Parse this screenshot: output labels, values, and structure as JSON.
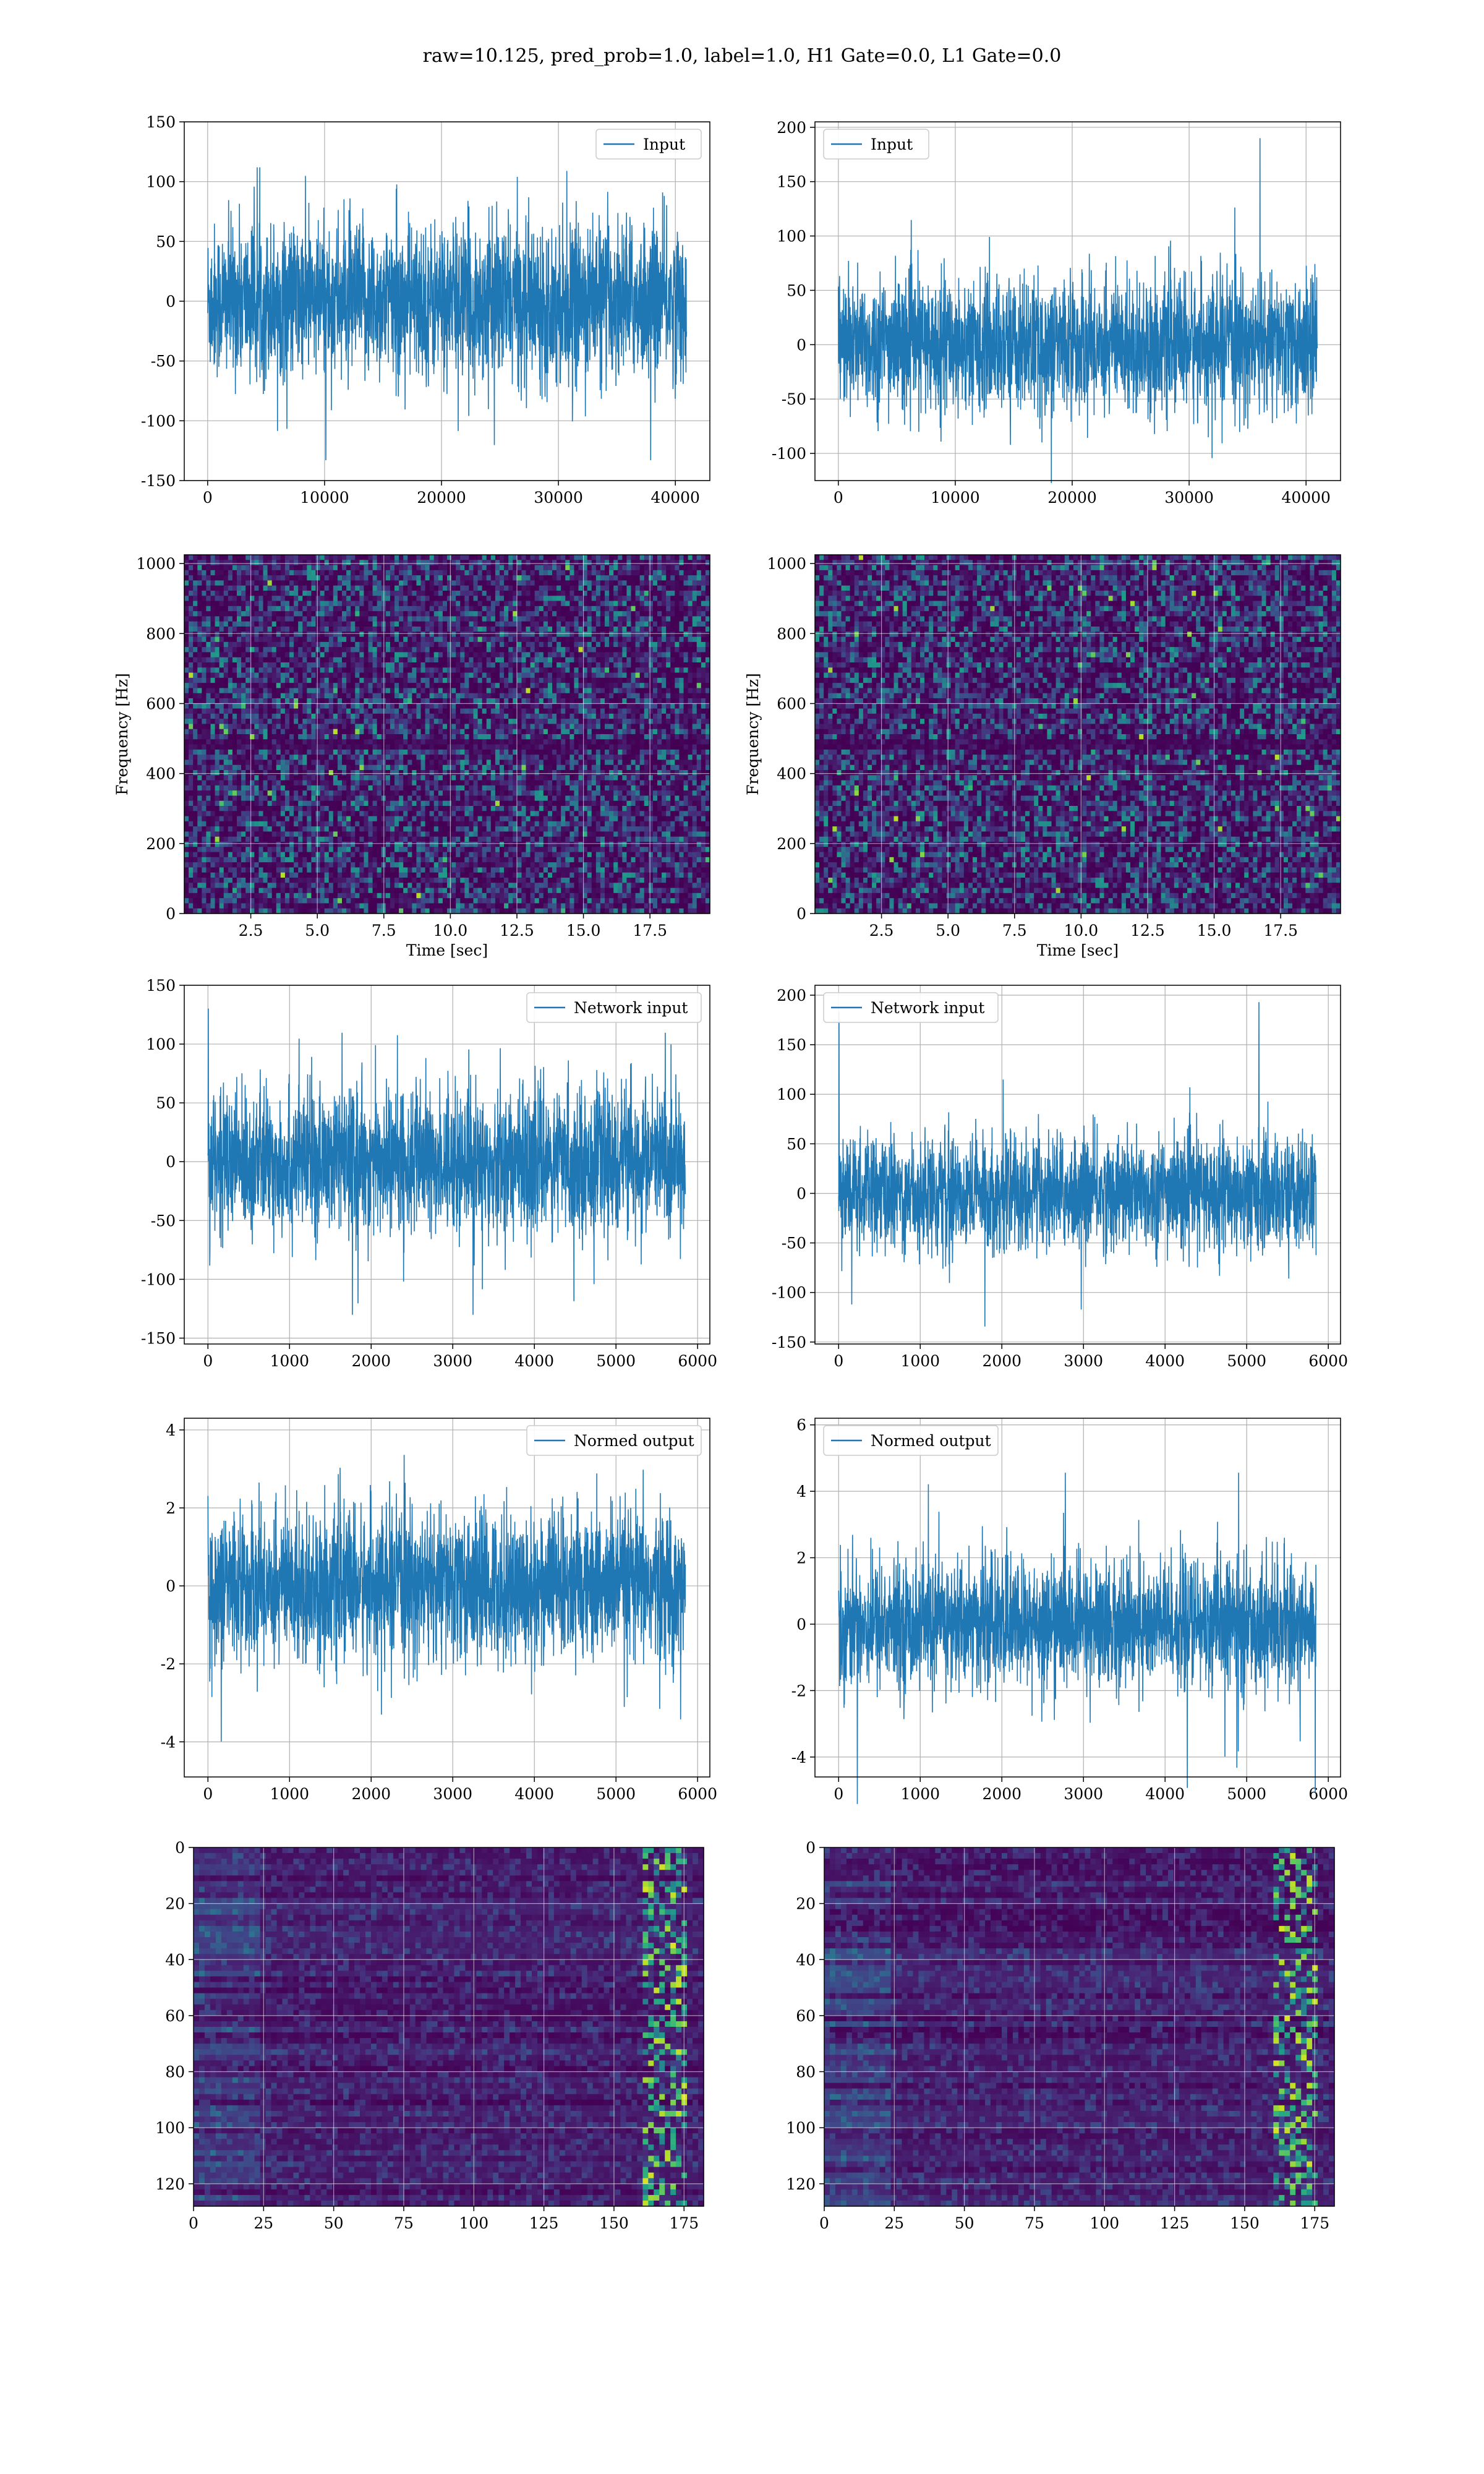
{
  "figure": {
    "title": "raw=10.125, pred_prob=1.0, label=1.0, H1 Gate=0.0, L1 Gate=0.0",
    "line_color": "#1f77b4",
    "colormap": "viridis"
  },
  "chart_data": [
    {
      "id": "h1-input",
      "type": "line",
      "series": [
        {
          "name": "Input"
        }
      ],
      "x_range": [
        0,
        40960
      ],
      "ylim": [
        -150,
        150
      ],
      "y_spread": 32,
      "y_extreme": 140,
      "xticks": [
        0,
        10000,
        20000,
        30000,
        40000
      ],
      "yticks": [
        -150,
        -100,
        -50,
        0,
        50,
        100,
        150
      ],
      "xlabel": "",
      "ylabel": "",
      "legend": "top-right",
      "grid": true
    },
    {
      "id": "l1-input",
      "type": "line",
      "series": [
        {
          "name": "Input"
        }
      ],
      "x_range": [
        0,
        40960
      ],
      "ylim": [
        -125,
        205
      ],
      "y_spread": 30,
      "y_extreme": 190,
      "xticks": [
        0,
        10000,
        20000,
        30000,
        40000
      ],
      "yticks": [
        -100,
        -50,
        0,
        50,
        100,
        150,
        200
      ],
      "xlabel": "",
      "ylabel": "",
      "legend": "top-left",
      "grid": true
    },
    {
      "id": "h1-spectrogram",
      "type": "heatmap",
      "xlim": [
        0,
        19.75
      ],
      "ylim": [
        0,
        1025
      ],
      "xticks": [
        "2.5",
        "5.0",
        "7.5",
        "10.0",
        "12.5",
        "15.0",
        "17.5"
      ],
      "yticks": [
        0,
        200,
        400,
        600,
        800,
        1000
      ],
      "xlabel": "Time [sec]",
      "ylabel": "Frequency [Hz]",
      "grid": true
    },
    {
      "id": "l1-spectrogram",
      "type": "heatmap",
      "xlim": [
        0,
        19.75
      ],
      "ylim": [
        0,
        1025
      ],
      "xticks": [
        "2.5",
        "5.0",
        "7.5",
        "10.0",
        "12.5",
        "15.0",
        "17.5"
      ],
      "yticks": [
        0,
        200,
        400,
        600,
        800,
        1000
      ],
      "xlabel": "Time [sec]",
      "ylabel": "Frequency [Hz]",
      "grid": true
    },
    {
      "id": "h1-network-input",
      "type": "line",
      "series": [
        {
          "name": "Network input"
        }
      ],
      "x_range": [
        0,
        5850
      ],
      "ylim": [
        -155,
        150
      ],
      "y_spread": 30,
      "y_extreme": 137,
      "xticks": [
        0,
        1000,
        2000,
        3000,
        4000,
        5000,
        6000
      ],
      "yticks": [
        -150,
        -100,
        -50,
        0,
        50,
        100,
        150
      ],
      "xlabel": "",
      "ylabel": "",
      "legend": "top-right",
      "grid": true
    },
    {
      "id": "l1-network-input",
      "type": "line",
      "series": [
        {
          "name": "Network input"
        }
      ],
      "x_range": [
        0,
        5850
      ],
      "ylim": [
        -152,
        210
      ],
      "y_spread": 28,
      "y_extreme": 193,
      "xticks": [
        0,
        1000,
        2000,
        3000,
        4000,
        5000,
        6000
      ],
      "yticks": [
        -150,
        -100,
        -50,
        0,
        50,
        100,
        150,
        200
      ],
      "xlabel": "",
      "ylabel": "",
      "legend": "top-left",
      "grid": true
    },
    {
      "id": "h1-normed-output",
      "type": "line",
      "series": [
        {
          "name": "Normed output"
        }
      ],
      "x_range": [
        0,
        5850
      ],
      "ylim": [
        -4.9,
        4.3
      ],
      "y_spread": 0.95,
      "y_extreme": 4.2,
      "xticks": [
        0,
        1000,
        2000,
        3000,
        4000,
        5000,
        6000
      ],
      "yticks": [
        -4,
        -2,
        0,
        2,
        4
      ],
      "xlabel": "",
      "ylabel": "",
      "legend": "top-right",
      "grid": true
    },
    {
      "id": "l1-normed-output",
      "type": "line",
      "series": [
        {
          "name": "Normed output"
        }
      ],
      "x_range": [
        0,
        5850
      ],
      "ylim": [
        -4.6,
        6.2
      ],
      "y_spread": 0.95,
      "y_extreme": 5.7,
      "xticks": [
        0,
        1000,
        2000,
        3000,
        4000,
        5000,
        6000
      ],
      "yticks": [
        -4,
        -2,
        0,
        2,
        4,
        6
      ],
      "xlabel": "",
      "ylabel": "",
      "legend": "top-left",
      "grid": true
    },
    {
      "id": "h1-feature-map",
      "type": "heatmap",
      "xlim": [
        0,
        182
      ],
      "ylim": [
        128,
        0
      ],
      "xticks": [
        0,
        25,
        50,
        75,
        100,
        125,
        150,
        175
      ],
      "yticks": [
        0,
        20,
        40,
        60,
        80,
        100,
        120
      ],
      "xlabel": "",
      "ylabel": "",
      "grid": true
    },
    {
      "id": "l1-feature-map",
      "type": "heatmap",
      "xlim": [
        0,
        182
      ],
      "ylim": [
        128,
        0
      ],
      "xticks": [
        0,
        25,
        50,
        75,
        100,
        125,
        150,
        175
      ],
      "yticks": [
        0,
        20,
        40,
        60,
        80,
        100,
        120
      ],
      "xlabel": "",
      "ylabel": "",
      "grid": true
    }
  ]
}
